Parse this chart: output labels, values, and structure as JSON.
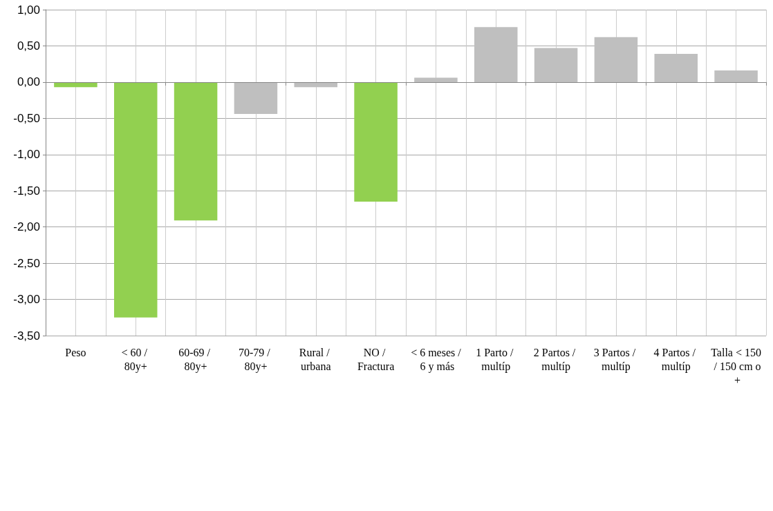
{
  "chart_data": {
    "type": "bar",
    "categories": [
      "Peso",
      "< 60 / 80y+",
      "60-69 / 80y+",
      "70-79 / 80y+",
      "Rural / urbana",
      "NO / Fractura",
      "< 6 meses / 6 y más",
      "1 Parto / multíp",
      "2 Partos / multíp",
      "3 Partos / multíp",
      "4 Partos / multíp",
      "Talla < 150 / 150 cm o +"
    ],
    "values": [
      -0.07,
      -3.25,
      -1.91,
      -0.44,
      -0.07,
      -1.65,
      0.06,
      0.76,
      0.47,
      0.62,
      0.39,
      0.16
    ],
    "colors": [
      "#92d050",
      "#92d050",
      "#92d050",
      "#bfbfbf",
      "#bfbfbf",
      "#92d050",
      "#bfbfbf",
      "#bfbfbf",
      "#bfbfbf",
      "#bfbfbf",
      "#bfbfbf",
      "#bfbfbf"
    ],
    "ylim": [
      -3.5,
      1
    ],
    "yticks": [
      {
        "value": -3.5,
        "label": "-3,50"
      },
      {
        "value": -3,
        "label": "-3,00"
      },
      {
        "value": -2.5,
        "label": "-2,50"
      },
      {
        "value": -2,
        "label": "-2,00"
      },
      {
        "value": -1.5,
        "label": "-1,50"
      },
      {
        "value": -1,
        "label": "-1,00"
      },
      {
        "value": -0.5,
        "label": "-0,50"
      },
      {
        "value": 0,
        "label": "0,00"
      },
      {
        "value": 0.5,
        "label": "0,50"
      },
      {
        "value": 1,
        "label": "1,00"
      }
    ],
    "grid": true
  }
}
